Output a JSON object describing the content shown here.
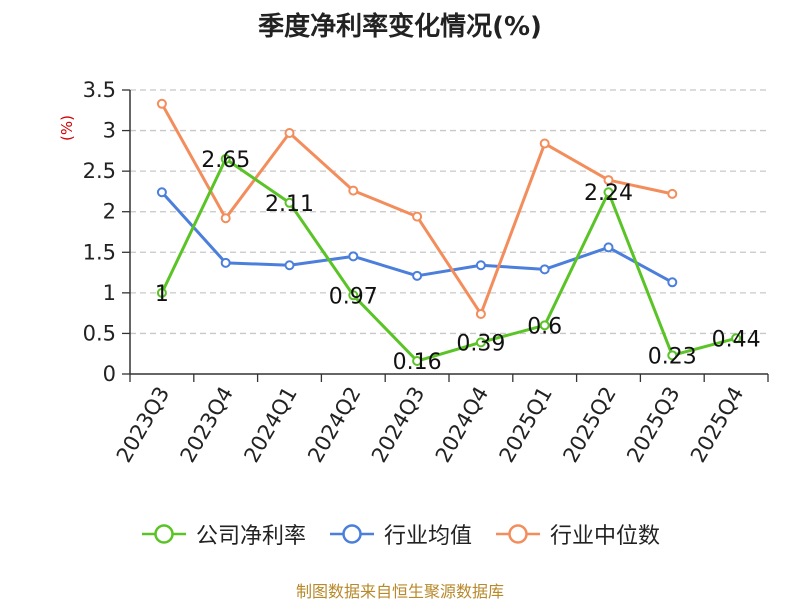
{
  "title": "季度净利率变化情况(%)",
  "source": "制图数据来自恒生聚源数据库",
  "chart_data": {
    "type": "line",
    "title": "季度净利率变化情况(%)",
    "ylabel": "(%)",
    "ylim": [
      0,
      3.5
    ],
    "yticks": [
      "0",
      "0.5",
      "1",
      "1.5",
      "2",
      "2.5",
      "3",
      "3.5"
    ],
    "categories": [
      "2023Q3",
      "2023Q4",
      "2024Q1",
      "2024Q2",
      "2024Q3",
      "2024Q4",
      "2025Q1",
      "2025Q2",
      "2025Q3",
      "2025Q4"
    ],
    "grid": true,
    "legend_position": "bottom",
    "series": [
      {
        "name": "公司净利率",
        "color": "#5ac427",
        "values": [
          1,
          2.65,
          2.11,
          0.97,
          0.16,
          0.39,
          0.6,
          2.24,
          0.23,
          0.44
        ],
        "labels": [
          "1",
          "2.65",
          "2.11",
          "0.97",
          "0.16",
          "0.39",
          "0.6",
          "2.24",
          "0.23",
          "0.44"
        ]
      },
      {
        "name": "行业均值",
        "color": "#4b7fdb",
        "values": [
          2.24,
          1.37,
          1.34,
          1.45,
          1.21,
          1.34,
          1.29,
          1.56,
          1.13,
          null
        ]
      },
      {
        "name": "行业中位数",
        "color": "#f48d5c",
        "values": [
          3.33,
          1.92,
          2.97,
          2.26,
          1.94,
          0.74,
          2.84,
          2.39,
          2.22,
          null
        ]
      }
    ]
  }
}
